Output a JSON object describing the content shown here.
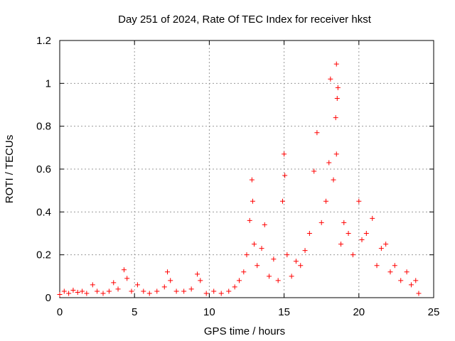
{
  "chart_data": {
    "type": "scatter",
    "title": "Day 251 of 2024, Rate Of TEC Index for receiver hkst",
    "xlabel": "GPS time / hours",
    "ylabel": "ROTI / TECUs",
    "xlim": [
      0,
      25
    ],
    "ylim": [
      0,
      1.2
    ],
    "xticks": [
      0,
      5,
      10,
      15,
      20,
      25
    ],
    "yticks": [
      0,
      0.2,
      0.4,
      0.6,
      0.8,
      1,
      1.2
    ],
    "xtick_labels": [
      "0",
      "5",
      "10",
      "15",
      "20",
      "25"
    ],
    "ytick_labels": [
      "0",
      "0.2",
      "0.4",
      "0.6",
      "0.8",
      "1",
      "1.2"
    ],
    "grid": true,
    "marker": "+",
    "marker_color": "#ff0000",
    "series": [
      {
        "name": "ROTI",
        "points": [
          [
            0.0,
            0.015
          ],
          [
            0.3,
            0.03
          ],
          [
            0.6,
            0.02
          ],
          [
            0.9,
            0.035
          ],
          [
            1.2,
            0.025
          ],
          [
            1.5,
            0.03
          ],
          [
            1.8,
            0.02
          ],
          [
            2.2,
            0.06
          ],
          [
            2.5,
            0.03
          ],
          [
            2.9,
            0.02
          ],
          [
            3.3,
            0.03
          ],
          [
            3.6,
            0.07
          ],
          [
            3.9,
            0.04
          ],
          [
            4.3,
            0.13
          ],
          [
            4.5,
            0.09
          ],
          [
            4.8,
            0.03
          ],
          [
            5.2,
            0.06
          ],
          [
            5.6,
            0.03
          ],
          [
            6.0,
            0.02
          ],
          [
            6.5,
            0.03
          ],
          [
            7.0,
            0.05
          ],
          [
            7.2,
            0.12
          ],
          [
            7.4,
            0.08
          ],
          [
            7.8,
            0.03
          ],
          [
            8.3,
            0.03
          ],
          [
            8.8,
            0.04
          ],
          [
            9.2,
            0.11
          ],
          [
            9.4,
            0.08
          ],
          [
            9.8,
            0.02
          ],
          [
            10.3,
            0.03
          ],
          [
            10.8,
            0.02
          ],
          [
            11.3,
            0.03
          ],
          [
            11.7,
            0.05
          ],
          [
            12.0,
            0.08
          ],
          [
            12.3,
            0.12
          ],
          [
            12.5,
            0.2
          ],
          [
            12.7,
            0.36
          ],
          [
            12.85,
            0.55
          ],
          [
            12.9,
            0.45
          ],
          [
            13.0,
            0.25
          ],
          [
            13.2,
            0.15
          ],
          [
            13.5,
            0.23
          ],
          [
            13.7,
            0.34
          ],
          [
            14.0,
            0.1
          ],
          [
            14.3,
            0.18
          ],
          [
            14.6,
            0.08
          ],
          [
            14.9,
            0.45
          ],
          [
            15.0,
            0.67
          ],
          [
            15.05,
            0.57
          ],
          [
            15.2,
            0.2
          ],
          [
            15.5,
            0.1
          ],
          [
            15.8,
            0.17
          ],
          [
            16.1,
            0.15
          ],
          [
            16.4,
            0.22
          ],
          [
            16.7,
            0.3
          ],
          [
            17.0,
            0.59
          ],
          [
            17.2,
            0.77
          ],
          [
            17.5,
            0.35
          ],
          [
            17.8,
            0.45
          ],
          [
            18.0,
            0.63
          ],
          [
            18.1,
            1.02
          ],
          [
            18.3,
            0.55
          ],
          [
            18.45,
            0.84
          ],
          [
            18.5,
            1.09
          ],
          [
            18.55,
            0.93
          ],
          [
            18.6,
            0.98
          ],
          [
            18.5,
            0.67
          ],
          [
            18.8,
            0.25
          ],
          [
            19.0,
            0.35
          ],
          [
            19.3,
            0.3
          ],
          [
            19.6,
            0.2
          ],
          [
            20.0,
            0.45
          ],
          [
            20.2,
            0.27
          ],
          [
            20.5,
            0.3
          ],
          [
            20.9,
            0.37
          ],
          [
            21.2,
            0.15
          ],
          [
            21.5,
            0.23
          ],
          [
            21.8,
            0.25
          ],
          [
            22.1,
            0.12
          ],
          [
            22.4,
            0.15
          ],
          [
            22.8,
            0.08
          ],
          [
            23.2,
            0.12
          ],
          [
            23.5,
            0.06
          ],
          [
            23.8,
            0.08
          ],
          [
            24.0,
            0.02
          ]
        ]
      }
    ]
  }
}
